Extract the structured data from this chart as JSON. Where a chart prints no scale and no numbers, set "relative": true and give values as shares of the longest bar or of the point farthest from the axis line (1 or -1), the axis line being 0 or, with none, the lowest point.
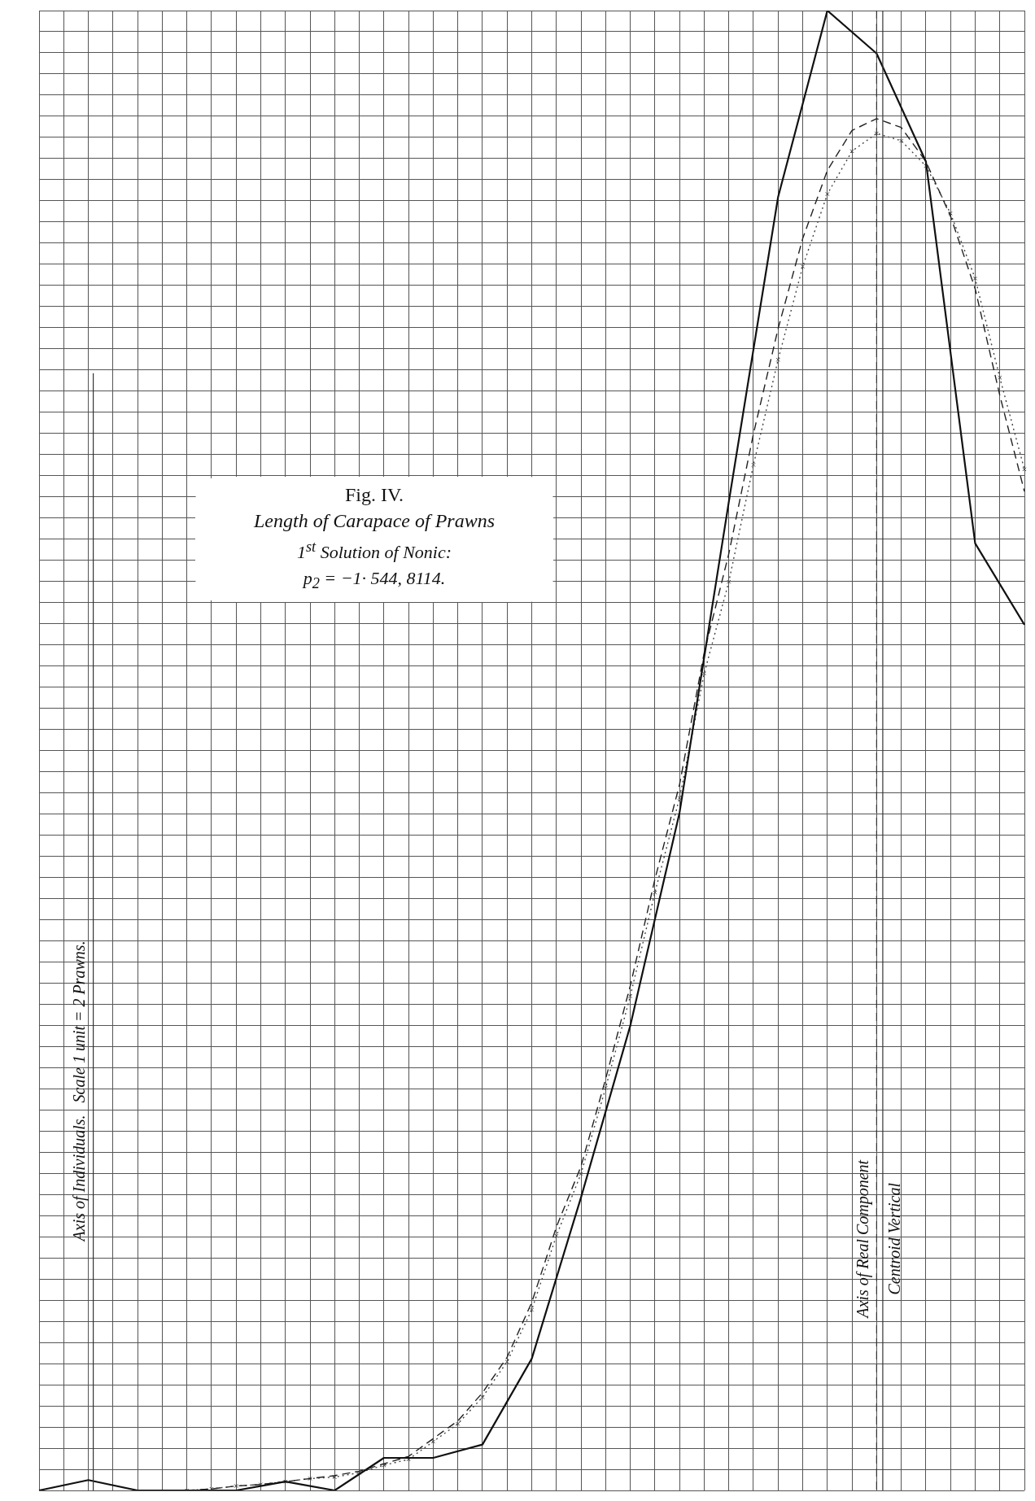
{
  "chart_data": {
    "type": "line",
    "title": "Fig. IV.",
    "subtitle": "Length of Carapace of Prawns",
    "annotations": [
      "1$^{st}$ Solution of Nonic:",
      "p$_{2}$ = −1· 544, 8114.",
      "Axis of Real Component",
      "Centroid Vertical",
      "Axis of Individuals.   Scale 1 unit = 2 Prawns."
    ],
    "relative": true,
    "grid": true,
    "categories": [
      null,
      null,
      null,
      null,
      null,
      null,
      null,
      null,
      null,
      null,
      null,
      null,
      null,
      null,
      null,
      null,
      null,
      null,
      null,
      null,
      null,
      null,
      null,
      null,
      null,
      null,
      null,
      null,
      null,
      null,
      null,
      null,
      null,
      null,
      null,
      null,
      null,
      null,
      null,
      null,
      null
    ],
    "series": [
      {
        "color": "#111111",
        "line_style": "solid",
        "marker": "none",
        "values": [
          0,
          null,
          0.007,
          null,
          0,
          null,
          0,
          null,
          0,
          null,
          0.006,
          null,
          0,
          null,
          0.022,
          null,
          0.022,
          null,
          0.031,
          null,
          0.089,
          null,
          0.198,
          null,
          0.314,
          null,
          0.458,
          null,
          0.668,
          null,
          0.874,
          null,
          1.0,
          null,
          0.971,
          null,
          0.898,
          null,
          0.64,
          null,
          0.585
        ]
      },
      {
        "color": "#222222",
        "line_style": "dashed",
        "marker": "none",
        "values": [
          null,
          null,
          null,
          null,
          null,
          null,
          0,
          0.001,
          0.003,
          0.004,
          0.006,
          0.008,
          0.01,
          0.013,
          0.018,
          0.023,
          0.035,
          0.047,
          0.066,
          0.09,
          0.127,
          0.178,
          0.219,
          0.278,
          0.341,
          0.413,
          0.477,
          0.566,
          0.633,
          0.714,
          0.785,
          0.846,
          0.892,
          0.919,
          0.927,
          0.921,
          0.898,
          0.861,
          0.812,
          0.74,
          0.675
        ]
      },
      {
        "color": "#444444",
        "line_style": "dotted",
        "marker": "cross",
        "values": [
          null,
          null,
          null,
          null,
          null,
          null,
          0,
          0.001,
          0.003,
          0.004,
          0.006,
          0.008,
          0.009,
          0.012,
          0.017,
          0.021,
          0.033,
          0.045,
          0.063,
          0.087,
          0.122,
          0.172,
          0.214,
          0.272,
          0.334,
          0.404,
          0.468,
          0.552,
          0.614,
          0.693,
          0.764,
          0.827,
          0.876,
          0.905,
          0.917,
          0.912,
          0.895,
          0.863,
          0.819,
          0.752,
          0.69
        ]
      }
    ]
  }
}
